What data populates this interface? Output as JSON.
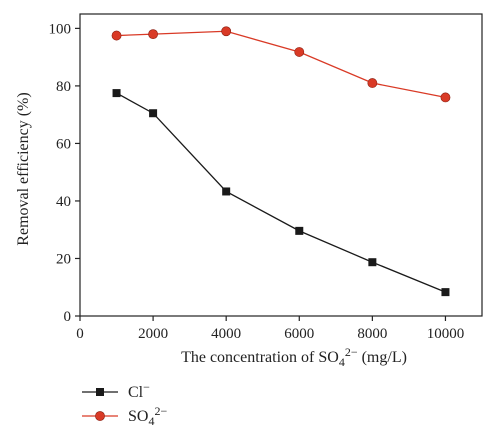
{
  "chart_data": {
    "type": "line",
    "x": [
      1000,
      2000,
      4000,
      6000,
      8000,
      10000
    ],
    "xticks": [
      0,
      2000,
      4000,
      6000,
      8000,
      10000
    ],
    "yticks": [
      0,
      20,
      40,
      60,
      80,
      100
    ],
    "xlim": [
      0,
      11000
    ],
    "ylim": [
      0,
      105
    ],
    "xlabel": {
      "main": "The concentration of SO",
      "sub": "4",
      "sup": "2−",
      "tail": " (mg/L)"
    },
    "ylabel": "Removal efficiency (%)",
    "legend_placement": "bottom-left",
    "series": [
      {
        "name": {
          "main": "Cl",
          "sub": "",
          "sup": "−"
        },
        "marker": "square",
        "color": "#1a1a1a",
        "values": [
          77.5,
          70.5,
          43.3,
          29.6,
          18.7,
          8.3
        ]
      },
      {
        "name": {
          "main": "SO",
          "sub": "4",
          "sup": "2−"
        },
        "marker": "circle",
        "color": "#d93a26",
        "values": [
          97.5,
          98.0,
          99.0,
          91.8,
          81.0,
          76.0
        ]
      }
    ]
  }
}
